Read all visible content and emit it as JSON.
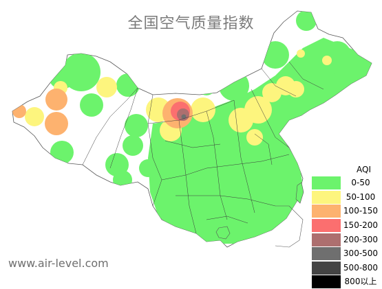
{
  "title": "全国空气质量指数",
  "watermark": "www.air-level.com",
  "legend": {
    "title": "AQI",
    "items": [
      {
        "label": "0-50",
        "color": "#6cf36c"
      },
      {
        "label": "50-100",
        "color": "#fdf57e"
      },
      {
        "label": "100-150",
        "color": "#fdb26f"
      },
      {
        "label": "150-200",
        "color": "#fb6f6f"
      },
      {
        "label": "200-300",
        "color": "#ad6f6f"
      },
      {
        "label": "300-500",
        "color": "#6f6f6f"
      },
      {
        "label": "500-800",
        "color": "#444444"
      },
      {
        "label": "800以上",
        "color": "#000000"
      }
    ]
  },
  "colors": {
    "good": "#6cf36c",
    "moderate": "#fdf57e",
    "sensitive": "#fdb26f",
    "unhealthy": "#fb6f6f",
    "very_unhealthy": "#ad6f6f",
    "hazardous": "#6f6f6f",
    "border": "#333333",
    "background": "#ffffff"
  }
}
